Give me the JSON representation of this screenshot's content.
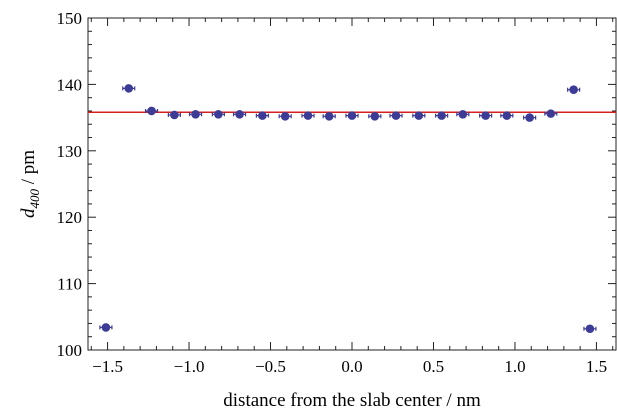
{
  "chart_data": {
    "type": "scatter",
    "title": "",
    "xlabel": "distance from the slab center / nm",
    "ylabel_main": "d",
    "ylabel_sub": "400",
    "ylabel_unit": " / pm",
    "xlim": [
      -1.62,
      1.62
    ],
    "ylim": [
      100,
      150
    ],
    "x_ticks": [
      -1.5,
      -1.0,
      -0.5,
      0.0,
      0.5,
      1.0,
      1.5
    ],
    "x_tick_labels": [
      "−1.5",
      "−1.0",
      "−0.5",
      "0.0",
      "0.5",
      "1.0",
      "1.5"
    ],
    "y_ticks": [
      100,
      110,
      120,
      130,
      140,
      150
    ],
    "y_tick_labels": [
      "100",
      "110",
      "120",
      "130",
      "140",
      "150"
    ],
    "grid": false,
    "reference_line": {
      "y": 135.8,
      "color": "#d62020"
    },
    "marker_color": "#3c3c96",
    "series": [
      {
        "x": [
          -1.51,
          -1.37,
          -1.23,
          -1.09,
          -0.96,
          -0.82,
          -0.69,
          -0.55,
          -0.41,
          -0.27,
          -0.14,
          0.0,
          0.14,
          0.27,
          0.41,
          0.55,
          0.68,
          0.82,
          0.95,
          1.09,
          1.22,
          1.36,
          1.46
        ],
        "y": [
          103.4,
          139.4,
          136.0,
          135.4,
          135.5,
          135.5,
          135.5,
          135.3,
          135.2,
          135.3,
          135.2,
          135.3,
          135.2,
          135.3,
          135.3,
          135.3,
          135.5,
          135.3,
          135.3,
          135.0,
          135.6,
          139.2,
          103.2
        ]
      }
    ]
  }
}
